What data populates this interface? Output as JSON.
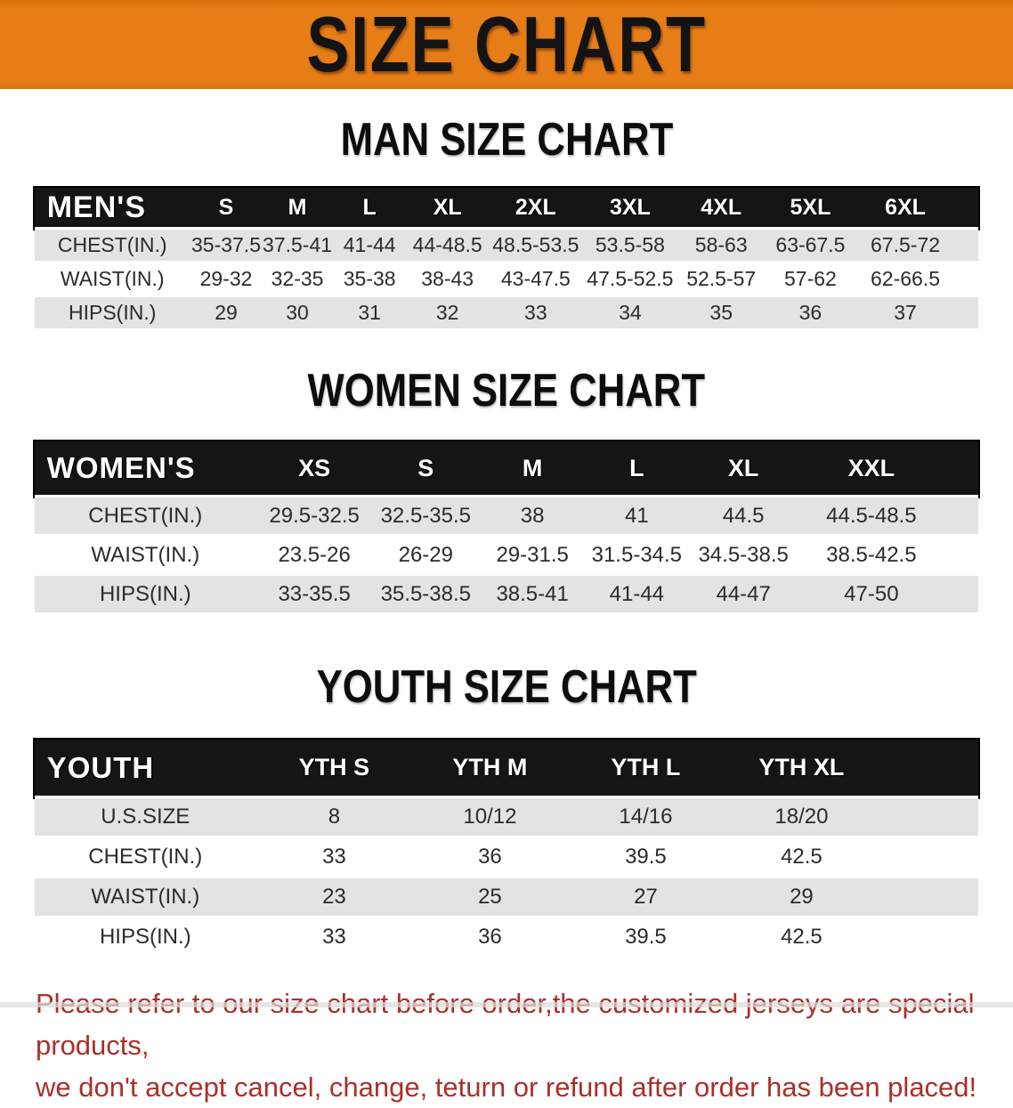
{
  "banner": {
    "title": "SIZE CHART"
  },
  "sections": [
    {
      "title": "MAN SIZE CHART",
      "header_label": "MEN'S",
      "columns": [
        "S",
        "M",
        "L",
        "XL",
        "2XL",
        "3XL",
        "4XL",
        "5XL",
        "6XL"
      ],
      "rows": [
        {
          "label": "CHEST(IN.)",
          "values": [
            "35-37.5",
            "37.5-41",
            "41-44",
            "44-48.5",
            "48.5-53.5",
            "53.5-58",
            "58-63",
            "63-67.5",
            "67.5-72"
          ]
        },
        {
          "label": "WAIST(IN.)",
          "values": [
            "29-32",
            "32-35",
            "35-38",
            "38-43",
            "43-47.5",
            "47.5-52.5",
            "52.5-57",
            "57-62",
            "62-66.5"
          ]
        },
        {
          "label": "HIPS(IN.)",
          "values": [
            "29",
            "30",
            "31",
            "32",
            "33",
            "34",
            "35",
            "36",
            "37"
          ]
        }
      ]
    },
    {
      "title": "WOMEN SIZE CHART",
      "header_label": "WOMEN'S",
      "columns": [
        "XS",
        "S",
        "M",
        "L",
        "XL",
        "XXL"
      ],
      "rows": [
        {
          "label": "CHEST(IN.)",
          "values": [
            "29.5-32.5",
            "32.5-35.5",
            "38",
            "41",
            "44.5",
            "44.5-48.5"
          ]
        },
        {
          "label": "WAIST(IN.)",
          "values": [
            "23.5-26",
            "26-29",
            "29-31.5",
            "31.5-34.5",
            "34.5-38.5",
            "38.5-42.5"
          ]
        },
        {
          "label": "HIPS(IN.)",
          "values": [
            "33-35.5",
            "35.5-38.5",
            "38.5-41",
            "41-44",
            "44-47",
            "47-50"
          ]
        }
      ]
    },
    {
      "title": "YOUTH SIZE CHART",
      "header_label": "YOUTH",
      "columns": [
        "YTH S",
        "YTH M",
        "YTH L",
        "YTH XL"
      ],
      "rows": [
        {
          "label": "U.S.SIZE",
          "values": [
            "8",
            "10/12",
            "14/16",
            "18/20"
          ]
        },
        {
          "label": "CHEST(IN.)",
          "values": [
            "33",
            "36",
            "39.5",
            "42.5"
          ]
        },
        {
          "label": "WAIST(IN.)",
          "values": [
            "23",
            "25",
            "27",
            "29"
          ]
        },
        {
          "label": "HIPS(IN.)",
          "values": [
            "33",
            "36",
            "39.5",
            "42.5"
          ]
        }
      ]
    }
  ],
  "footer": {
    "line1": "Please refer to our size chart before order,the customized jerseys are special products,",
    "line2": "we don't accept cancel, change, teturn or refund after order has been placed!"
  },
  "colors": {
    "banner_orange": "#e67d17",
    "table_header_black": "#151515",
    "row_stripe_gray": "#e3e3e3",
    "footer_red": "#a9302a",
    "title_black": "#0d0d0d"
  }
}
